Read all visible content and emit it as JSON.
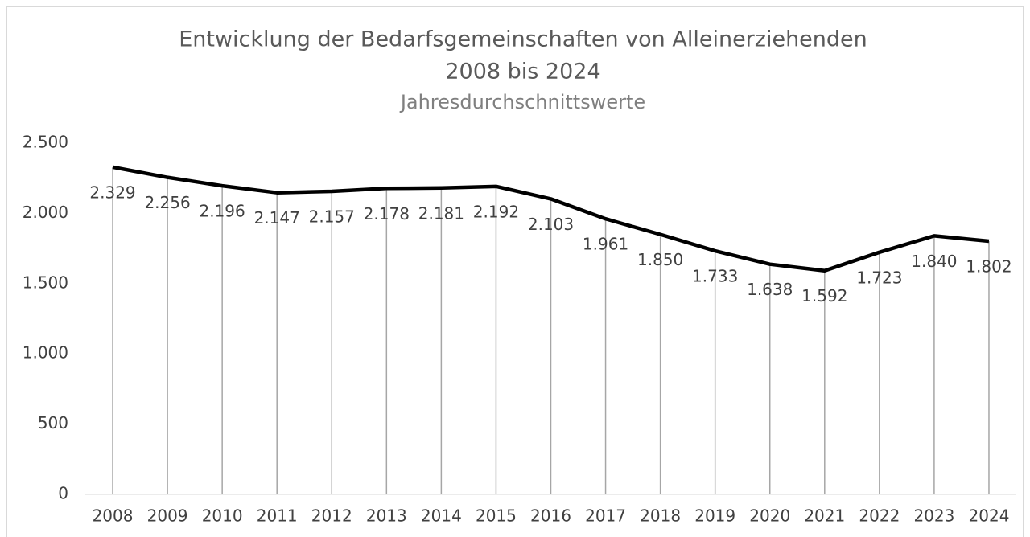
{
  "chart_data": {
    "type": "line",
    "title": [
      "Entwicklung der Bedarfsgemeinschaften von Alleinerziehenden",
      "2008 bis 2024"
    ],
    "subtitle": "Jahresdurchschnittswerte",
    "categories": [
      "2008",
      "2009",
      "2010",
      "2011",
      "2012",
      "2013",
      "2014",
      "2015",
      "2016",
      "2017",
      "2018",
      "2019",
      "2020",
      "2021",
      "2022",
      "2023",
      "2024"
    ],
    "values": [
      2329,
      2256,
      2196,
      2147,
      2157,
      2178,
      2181,
      2192,
      2103,
      1961,
      1850,
      1733,
      1638,
      1592,
      1723,
      1840,
      1802
    ],
    "value_labels": [
      "2.329",
      "2.256",
      "2.196",
      "2.147",
      "2.157",
      "2.178",
      "2.181",
      "2.192",
      "2.103",
      "1.961",
      "1.850",
      "1.733",
      "1.638",
      "1.592",
      "1.723",
      "1.840",
      "1.802"
    ],
    "color": "#000000",
    "drop_lines": true,
    "ylim": [
      0,
      2500
    ],
    "yticks": [
      0,
      500,
      {
        "value": 1000,
        "label": "1.000"
      },
      {
        "value": 1500,
        "label": "1.500"
      },
      {
        "value": 2000,
        "label": "2.000"
      },
      {
        "value": 2500,
        "label": "2.500"
      }
    ],
    "grid": false
  }
}
